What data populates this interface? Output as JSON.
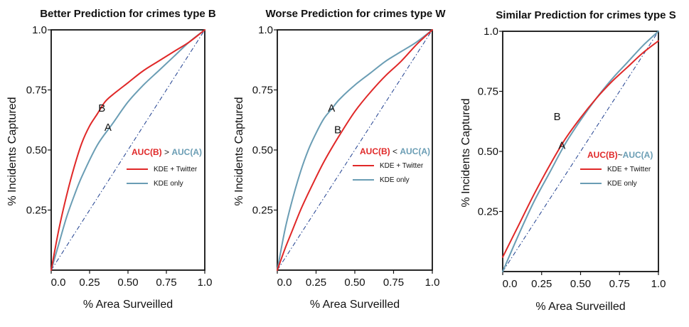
{
  "colors": {
    "kde_twitter": "#e02828",
    "kde_only": "#6a9db4",
    "diagonal": "#1f3f8f",
    "axis": "#111111"
  },
  "chart_data": [
    {
      "type": "line",
      "title": "Better Prediction for crimes type B",
      "xlabel": "% Area Surveilled",
      "ylabel": "% Incidents Captured",
      "xlim": [
        0,
        1
      ],
      "ylim": [
        0,
        1
      ],
      "xticks": [
        "0.0",
        "0.25",
        "0.50",
        "0.75",
        "1.0"
      ],
      "yticks": [
        "1.0",
        "0.75",
        "0.50",
        "0.25"
      ],
      "annotation": {
        "left": "AUC(B)",
        "op": ">",
        "right": "AUC(A)"
      },
      "curve_labels": [
        {
          "text": "B",
          "x": 0.33,
          "y": 0.66
        },
        {
          "text": "A",
          "x": 0.37,
          "y": 0.58
        }
      ],
      "legend": [
        "KDE + Twitter",
        "KDE only"
      ],
      "series": [
        {
          "name": "KDE + Twitter",
          "color": "red",
          "x": [
            0,
            0.05,
            0.1,
            0.15,
            0.2,
            0.25,
            0.3,
            0.35,
            0.4,
            0.5,
            0.6,
            0.7,
            0.8,
            0.9,
            1.0
          ],
          "y": [
            0,
            0.17,
            0.31,
            0.43,
            0.53,
            0.6,
            0.65,
            0.7,
            0.73,
            0.78,
            0.83,
            0.87,
            0.91,
            0.95,
            1.0
          ]
        },
        {
          "name": "KDE only",
          "color": "blue",
          "x": [
            0,
            0.05,
            0.1,
            0.15,
            0.2,
            0.3,
            0.4,
            0.5,
            0.6,
            0.7,
            0.8,
            0.9,
            1.0
          ],
          "y": [
            0,
            0.11,
            0.22,
            0.31,
            0.39,
            0.52,
            0.61,
            0.7,
            0.77,
            0.83,
            0.89,
            0.95,
            1.0
          ]
        }
      ]
    },
    {
      "type": "line",
      "title": "Worse Prediction for crimes type W",
      "xlabel": "% Area Surveilled",
      "ylabel": "% Incidents Captured",
      "xlim": [
        0,
        1
      ],
      "ylim": [
        0,
        1
      ],
      "xticks": [
        "0.0",
        "0.25",
        "0.50",
        "0.75",
        "1.0"
      ],
      "yticks": [
        "1.0",
        "0.75",
        "0.50",
        "0.25"
      ],
      "annotation": {
        "left": "AUC(B)",
        "op": "<",
        "right": "AUC(A)"
      },
      "curve_labels": [
        {
          "text": "A",
          "x": 0.35,
          "y": 0.66
        },
        {
          "text": "B",
          "x": 0.39,
          "y": 0.57
        }
      ],
      "legend": [
        "KDE + Twitter",
        "KDE only"
      ],
      "series": [
        {
          "name": "KDE + Twitter",
          "color": "red",
          "x": [
            0,
            0.05,
            0.1,
            0.15,
            0.2,
            0.3,
            0.4,
            0.5,
            0.6,
            0.7,
            0.8,
            0.9,
            1.0
          ],
          "y": [
            0,
            0.09,
            0.17,
            0.25,
            0.32,
            0.45,
            0.56,
            0.66,
            0.74,
            0.81,
            0.87,
            0.94,
            1.0
          ]
        },
        {
          "name": "KDE only",
          "color": "blue",
          "x": [
            0,
            0.05,
            0.1,
            0.15,
            0.2,
            0.25,
            0.3,
            0.35,
            0.4,
            0.5,
            0.6,
            0.7,
            0.8,
            0.9,
            1.0
          ],
          "y": [
            0,
            0.17,
            0.3,
            0.41,
            0.5,
            0.57,
            0.63,
            0.67,
            0.71,
            0.77,
            0.82,
            0.87,
            0.91,
            0.95,
            1.0
          ]
        }
      ]
    },
    {
      "type": "line",
      "title": "Similar Prediction for crimes type S",
      "xlabel": "% Area Surveilled",
      "ylabel": "% Incidents Captured",
      "xlim": [
        0,
        1
      ],
      "ylim": [
        0,
        1
      ],
      "xticks": [
        "0.0",
        "0.25",
        "0.50",
        "0.75",
        "1.0"
      ],
      "yticks": [
        "1.0",
        "0.75",
        "0.50",
        "0.25"
      ],
      "annotation": {
        "left": "AUC(B)",
        "op": "~",
        "right": "AUC(A)"
      },
      "curve_labels": [
        {
          "text": "B",
          "x": 0.35,
          "y": 0.63
        },
        {
          "text": "A",
          "x": 0.38,
          "y": 0.51
        }
      ],
      "legend": [
        "KDE + Twitter",
        "KDE only"
      ],
      "series": [
        {
          "name": "KDE + Twitter",
          "color": "red",
          "x": [
            0,
            0.1,
            0.2,
            0.3,
            0.4,
            0.5,
            0.6,
            0.7,
            0.8,
            0.9,
            1.0
          ],
          "y": [
            0.06,
            0.19,
            0.32,
            0.44,
            0.55,
            0.64,
            0.72,
            0.79,
            0.85,
            0.91,
            0.96
          ]
        },
        {
          "name": "KDE only",
          "color": "blue",
          "x": [
            0,
            0.1,
            0.2,
            0.3,
            0.4,
            0.5,
            0.6,
            0.7,
            0.8,
            0.9,
            1.0
          ],
          "y": [
            0,
            0.15,
            0.29,
            0.41,
            0.53,
            0.63,
            0.72,
            0.8,
            0.87,
            0.94,
            1.0
          ]
        }
      ]
    }
  ]
}
